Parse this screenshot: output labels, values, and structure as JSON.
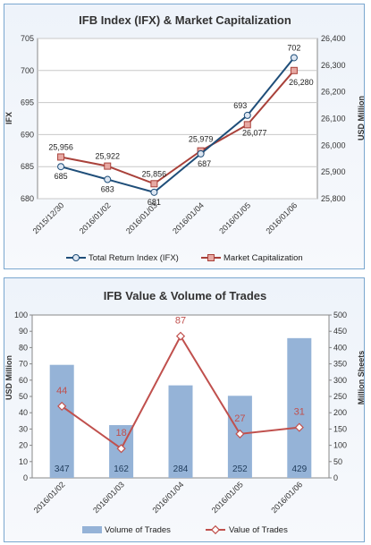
{
  "chart_data": [
    {
      "type": "line",
      "title": "IFB Index (IFX) & Market Capitalization",
      "categories": [
        "2015/12/30",
        "2016/01/02",
        "2016/01/03",
        "2016/01/04",
        "2016/01/05",
        "2016/01/06"
      ],
      "ylabel": "IFX",
      "y2label": "USD Million",
      "ylim": [
        680,
        705
      ],
      "yticks": [
        680,
        685,
        690,
        695,
        700,
        705
      ],
      "y2lim": [
        25800,
        26400
      ],
      "y2ticks": [
        "25,800",
        "25,900",
        "26,000",
        "26,100",
        "26,200",
        "26,300",
        "26,400"
      ],
      "grid": true,
      "legend": "bottom",
      "series": [
        {
          "name": "Total Return Index (IFX)",
          "axis": "left",
          "color": "#1f4e79",
          "values": [
            685,
            683,
            681,
            687,
            693,
            702
          ],
          "labels": [
            "685",
            "683",
            "681",
            "687",
            "693",
            "702"
          ]
        },
        {
          "name": "Market Capitalization",
          "axis": "right",
          "color": "#a9413a",
          "values": [
            25956,
            25922,
            25856,
            25979,
            26077,
            26280
          ],
          "labels": [
            "25,956",
            "25,922",
            "25,856",
            "25,979",
            "26,077",
            "26,280"
          ]
        }
      ]
    },
    {
      "type": "bar",
      "title": "IFB Value & Volume of Trades",
      "categories": [
        "2016/01/02",
        "2016/01/03",
        "2016/01/04",
        "2016/01/05",
        "2016/01/06"
      ],
      "ylabel": "USD Million",
      "y2label": "Million Sheets",
      "ylim": [
        0,
        100
      ],
      "yticks": [
        0,
        10,
        20,
        30,
        40,
        50,
        60,
        70,
        80,
        90,
        100
      ],
      "y2lim": [
        0,
        500
      ],
      "y2ticks": [
        0,
        50,
        100,
        150,
        200,
        250,
        300,
        350,
        400,
        450,
        500
      ],
      "legend": "bottom",
      "series": [
        {
          "name": "Volume of Trades",
          "axis": "right",
          "kind": "bar",
          "color": "#95b3d7",
          "values": [
            347,
            162,
            284,
            252,
            429
          ],
          "labels": [
            "347",
            "162",
            "284",
            "252",
            "429"
          ]
        },
        {
          "name": "Value of Trades",
          "axis": "left",
          "kind": "line",
          "color": "#c0504d",
          "values": [
            44,
            18,
            87,
            27,
            31
          ],
          "labels": [
            "44",
            "18",
            "87",
            "27",
            "31"
          ]
        }
      ]
    }
  ]
}
